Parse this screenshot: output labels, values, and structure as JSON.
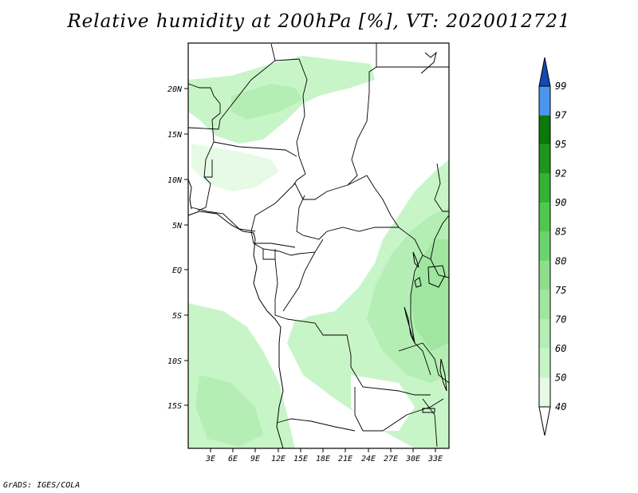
{
  "title": "Relative humidity at 200hPa [%], VT: 2020012721",
  "footer": "GrADS: IGES/COLA",
  "lat_labels": [
    "20N",
    "15N",
    "10N",
    "5N",
    "EQ",
    "5S",
    "10S",
    "15S"
  ],
  "lon_labels": [
    "3E",
    "6E",
    "9E",
    "12E",
    "15E",
    "18E",
    "21E",
    "24E",
    "27E",
    "30E",
    "33E"
  ],
  "colorbar": {
    "labels": [
      "40",
      "50",
      "60",
      "70",
      "75",
      "80",
      "85",
      "90",
      "92",
      "95",
      "97",
      "99"
    ],
    "colors": [
      "#e6fae6",
      "#c8f5c8",
      "#b4eeb4",
      "#a0e6a0",
      "#8ce08c",
      "#6cd46c",
      "#50c850",
      "#32b432",
      "#1e961e",
      "#0a780a",
      "#4c96f0",
      "#1e6ed2",
      "#1448b4"
    ]
  }
}
